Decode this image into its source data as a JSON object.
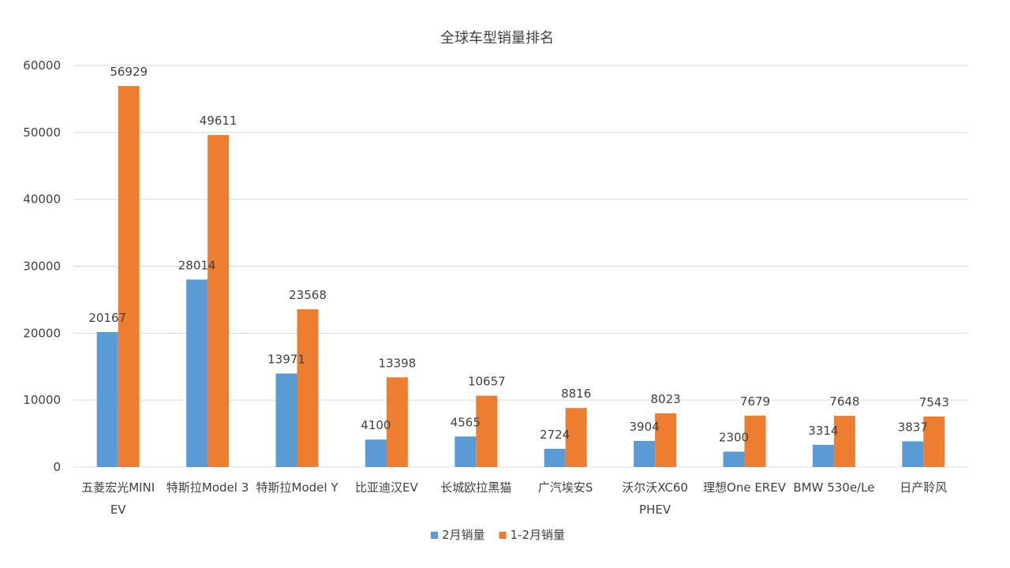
{
  "chart_data": {
    "type": "bar",
    "title": "全球车型销量排名",
    "categories": [
      [
        "五菱宏光MINI",
        "EV"
      ],
      [
        "特斯拉Model 3"
      ],
      [
        "特斯拉Model Y"
      ],
      [
        "比亚迪汉EV"
      ],
      [
        "长城欧拉黑猫"
      ],
      [
        "广汽埃安S"
      ],
      [
        "沃尔沃XC60",
        "PHEV"
      ],
      [
        "理想One EREV"
      ],
      [
        "BMW 530e/Le"
      ],
      [
        "日产聆风"
      ]
    ],
    "series": [
      {
        "name": "2月销量",
        "color": "#5b9bd5",
        "values": [
          20167,
          28014,
          13971,
          4100,
          4565,
          2724,
          3904,
          2300,
          3314,
          3837
        ]
      },
      {
        "name": "1-2月销量",
        "color": "#ed7d31",
        "values": [
          56929,
          49611,
          23568,
          13398,
          10657,
          8816,
          8023,
          7679,
          7648,
          7543
        ]
      }
    ],
    "yticks": [
      0,
      10000,
      20000,
      30000,
      40000,
      50000,
      60000
    ],
    "ylim": [
      0,
      60000
    ],
    "xlabel": "",
    "ylabel": "",
    "grid": true,
    "legend_position": "bottom"
  }
}
